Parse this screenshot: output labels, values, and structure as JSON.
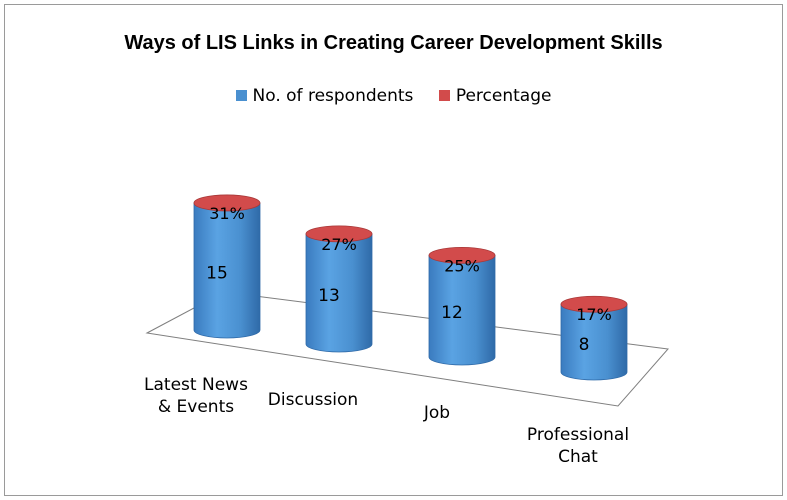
{
  "chart_data": {
    "type": "bar",
    "title": "Ways of LIS Links in Creating Career Development Skills",
    "categories": [
      "Latest News & Events",
      "Discussion",
      "Job",
      "Professional Chat"
    ],
    "category_lines": [
      [
        "Latest News",
        "& Events"
      ],
      [
        "Discussion"
      ],
      [
        "Job"
      ],
      [
        "Professional",
        "Chat"
      ]
    ],
    "series": [
      {
        "name": "No. of  respondents",
        "values": [
          15,
          13,
          12,
          8
        ],
        "color": "#4a90d0"
      },
      {
        "name": "Percentage",
        "values": [
          "31%",
          "27%",
          "25%",
          "17%"
        ],
        "color": "#d24b4b"
      }
    ],
    "style": "3d-cylinder",
    "grid": false,
    "legend_position": "top"
  }
}
